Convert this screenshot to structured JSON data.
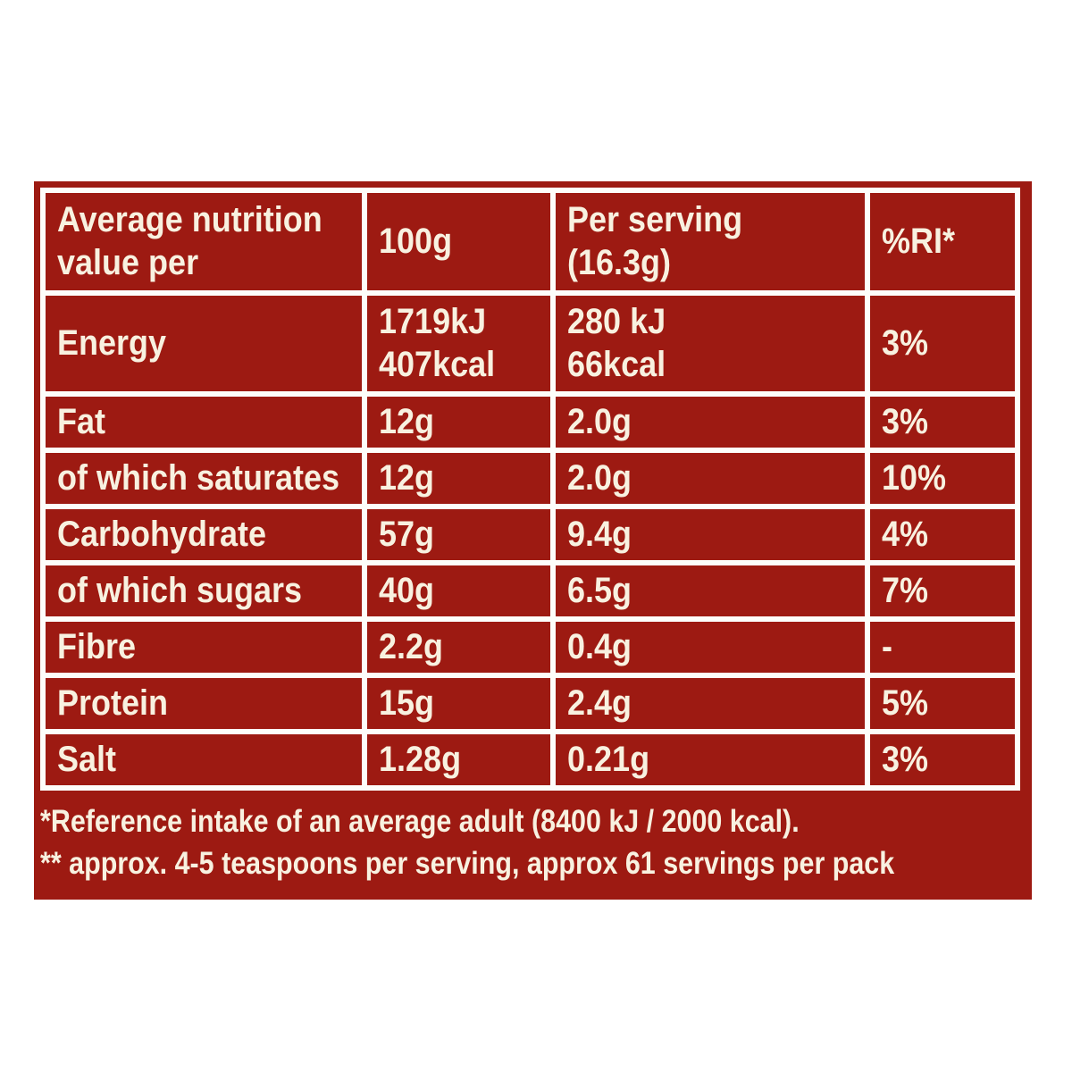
{
  "colors": {
    "panel_red": "#9D1A12",
    "cell_red": "#9D1A12",
    "grid_white": "#FDFDFA",
    "text_cream": "#F8F1E0"
  },
  "table": {
    "header": {
      "col1": "Average nutrition\nvalue per",
      "col2": "100g",
      "col3": "Per serving\n(16.3g)",
      "col4": "%RI*"
    },
    "rows": [
      {
        "label": "Energy",
        "per100g": "1719kJ\n407kcal",
        "per_serving": "280 kJ\n66kcal",
        "ri": "3%"
      },
      {
        "label": "Fat",
        "per100g": "12g",
        "per_serving": "2.0g",
        "ri": "3%"
      },
      {
        "label": "of which saturates",
        "per100g": "12g",
        "per_serving": "2.0g",
        "ri": "10%"
      },
      {
        "label": "Carbohydrate",
        "per100g": "57g",
        "per_serving": "9.4g",
        "ri": "4%"
      },
      {
        "label": "of which sugars",
        "per100g": "40g",
        "per_serving": "6.5g",
        "ri": "7%"
      },
      {
        "label": "Fibre",
        "per100g": "2.2g",
        "per_serving": "0.4g",
        "ri": "-"
      },
      {
        "label": "Protein",
        "per100g": "15g",
        "per_serving": "2.4g",
        "ri": "5%"
      },
      {
        "label": "Salt",
        "per100g": "1.28g",
        "per_serving": "0.21g",
        "ri": "3%"
      }
    ]
  },
  "footnotes": {
    "line1": "*Reference intake of an average adult (8400 kJ / 2000 kcal).",
    "line2": "** approx. 4-5 teaspoons per serving, approx 61 servings per pack"
  }
}
